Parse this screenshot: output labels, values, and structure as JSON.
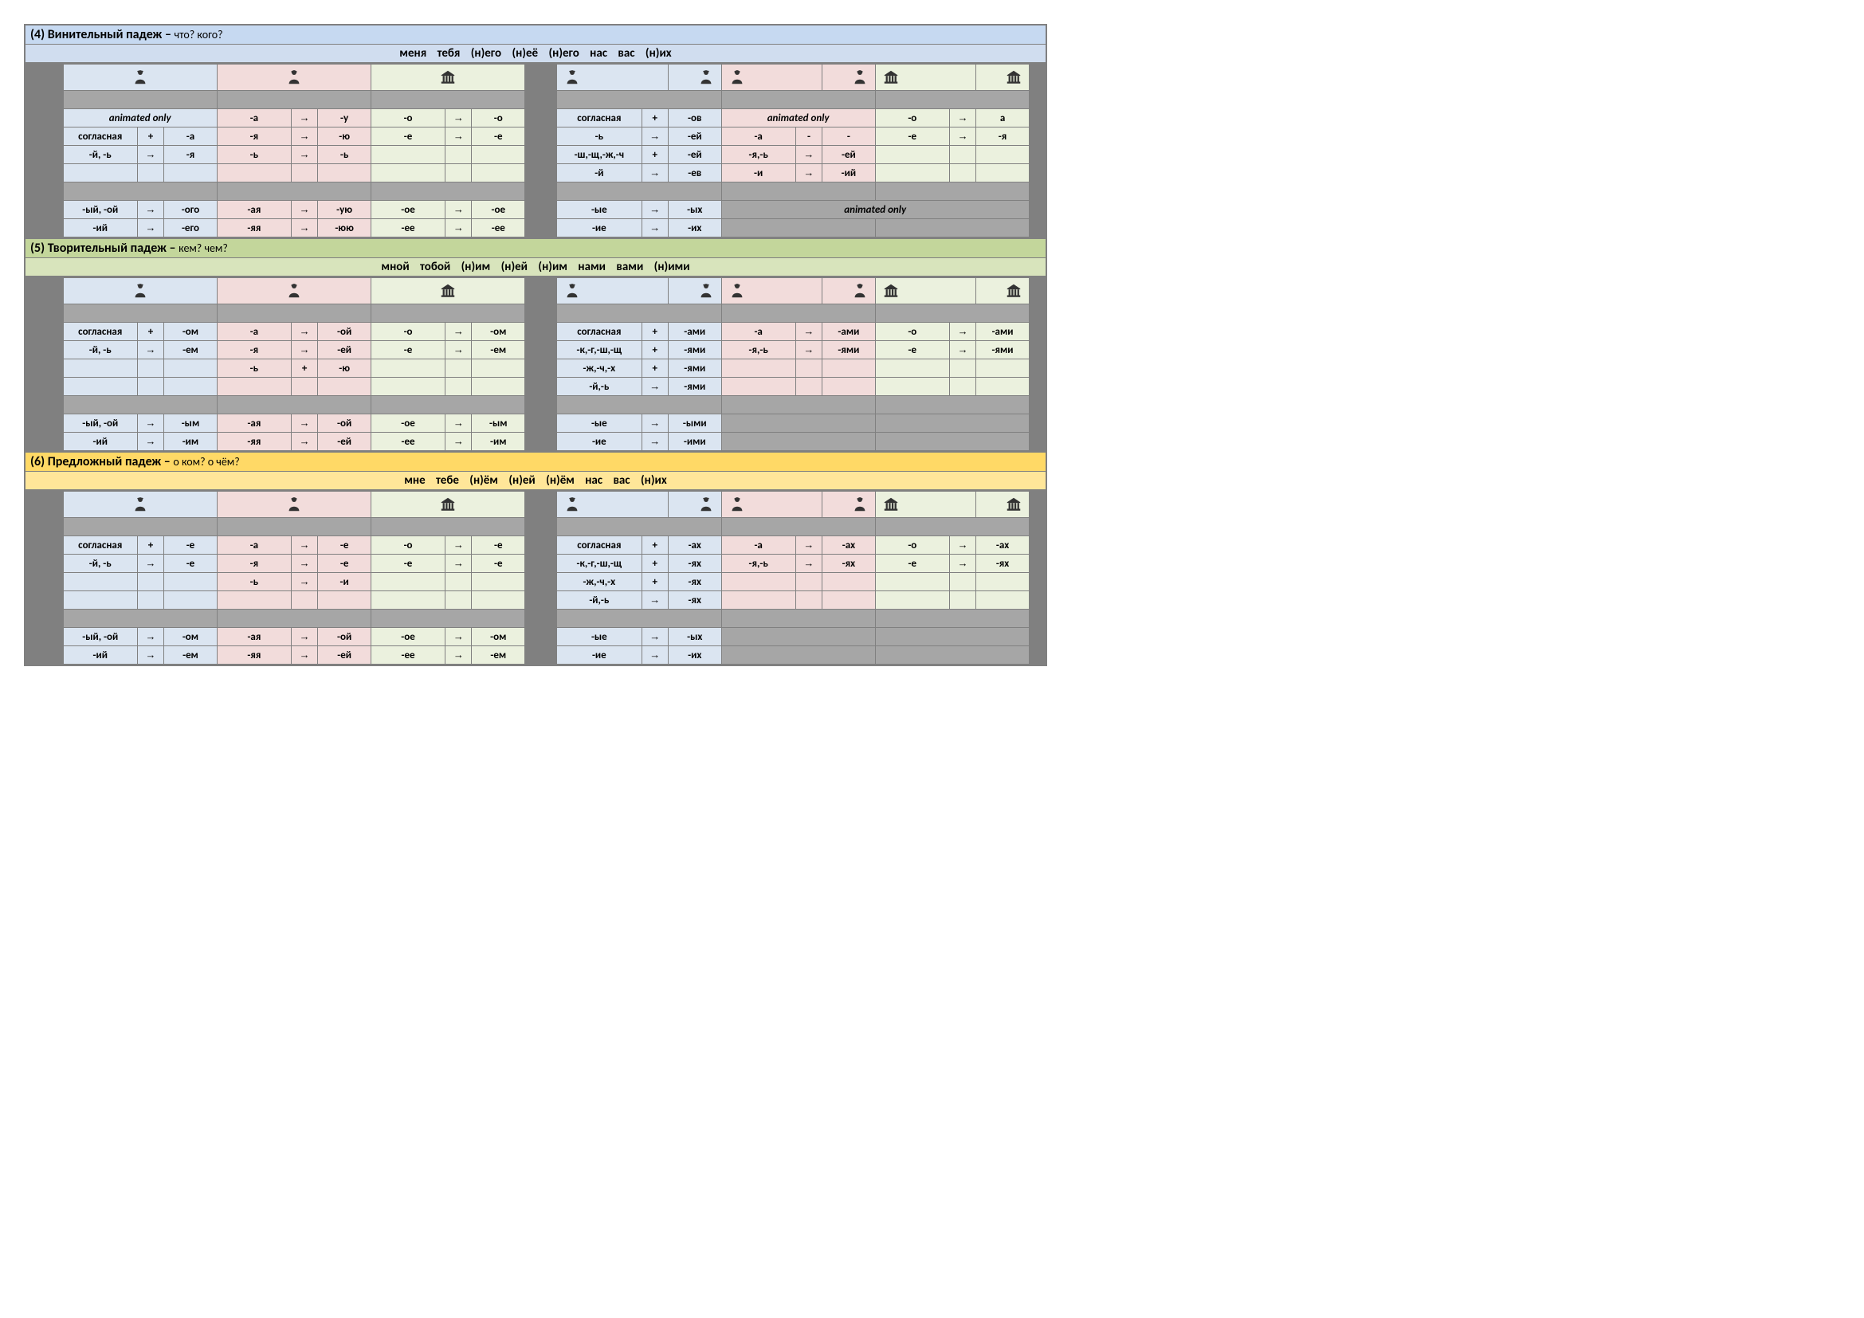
{
  "colors": {
    "gutter": "#808080",
    "blue": "#dbe5f1",
    "pink": "#f2dcdb",
    "green": "#ebf1de",
    "title_blue": "#c6d9f1",
    "title_green": "#c3d69b",
    "title_yellow": "#ffd966",
    "pron_blue": "#d0ddef",
    "pron_green": "#d8e4bc",
    "pron_yellow": "#ffe699"
  },
  "icons": {
    "male": "male-icon",
    "female": "female-icon",
    "building": "building-icon"
  },
  "glyphs": {
    "arrow": "→",
    "plus": "+",
    "minus": "-"
  },
  "cases": [
    {
      "num": "4",
      "name": "Винительный падеж",
      "q": "что? кого?",
      "title_class": "t-blue",
      "pron_class": "p-blue",
      "pronouns": "меня  тебя  (н)его  (н)её  (н)его  нас  вас  (н)их",
      "noun_rows": 4,
      "singular": {
        "m": [
          [
            "animated only",
            "C3",
            ""
          ],
          [
            "согласная",
            "+",
            "-а"
          ],
          [
            "-й, -ь",
            "→",
            "-я"
          ],
          [
            "",
            "",
            ""
          ]
        ],
        "f": [
          [
            "-а",
            "→",
            "-у"
          ],
          [
            "-я",
            "→",
            "-ю"
          ],
          [
            "-ь",
            "→",
            "-ь"
          ],
          [
            "",
            "",
            ""
          ]
        ],
        "n": [
          [
            "-о",
            "→",
            "-о"
          ],
          [
            "-е",
            "→",
            "-е"
          ],
          [
            "",
            "",
            ""
          ],
          [
            "",
            "",
            ""
          ]
        ]
      },
      "plural": {
        "m": [
          [
            "согласная",
            "+",
            "-ов"
          ],
          [
            "-ь",
            "→",
            "-ей"
          ],
          [
            "-ш,-щ,-ж,-ч",
            "+",
            "-ей"
          ],
          [
            "-й",
            "→",
            "-ев"
          ]
        ],
        "f": [
          [
            "animated only",
            "C3",
            ""
          ],
          [
            "-а",
            "-",
            "-"
          ],
          [
            "-я,-ь",
            "→",
            "-ей"
          ],
          [
            "-и",
            "→",
            "-ий"
          ]
        ],
        "n": [
          [
            "-о",
            "→",
            "а"
          ],
          [
            "-е",
            "→",
            "-я"
          ],
          [
            "",
            "",
            ""
          ],
          [
            "",
            "",
            ""
          ]
        ]
      },
      "adj_singular": {
        "m": [
          [
            "-ый, -ой",
            "→",
            "-ого"
          ],
          [
            "-ий",
            "→",
            "-его"
          ]
        ],
        "f": [
          [
            "-ая",
            "→",
            "-ую"
          ],
          [
            "-яя",
            "→",
            "-юю"
          ]
        ],
        "n": [
          [
            "-ое",
            "→",
            "-ое"
          ],
          [
            "-ее",
            "→",
            "-ее"
          ]
        ]
      },
      "adj_plural": {
        "m": [
          [
            "-ые",
            "→",
            "-ых"
          ],
          [
            "-ие",
            "→",
            "-их"
          ]
        ],
        "fn": [
          [
            "animated only",
            "C6",
            ""
          ],
          [
            "",
            "",
            ""
          ]
        ]
      }
    },
    {
      "num": "5",
      "name": "Творительный падеж",
      "q": "кем? чем?",
      "title_class": "t-green",
      "pron_class": "p-green",
      "pronouns": "мной  тобой  (н)им  (н)ей  (н)им  нами  вами  (н)ими",
      "noun_rows": 4,
      "singular": {
        "m": [
          [
            "согласная",
            "+",
            "-ом"
          ],
          [
            "-й, -ь",
            "→",
            "-ем"
          ],
          [
            "",
            "",
            ""
          ],
          [
            "",
            "",
            ""
          ]
        ],
        "f": [
          [
            "-а",
            "→",
            "-ой"
          ],
          [
            "-я",
            "→",
            "-ей"
          ],
          [
            "-ь",
            "+",
            "-ю"
          ],
          [
            "",
            "",
            ""
          ]
        ],
        "n": [
          [
            "-о",
            "→",
            "-ом"
          ],
          [
            "-е",
            "→",
            "-ем"
          ],
          [
            "",
            "",
            ""
          ],
          [
            "",
            "",
            ""
          ]
        ]
      },
      "plural": {
        "m": [
          [
            "согласная",
            "+",
            "-ами"
          ],
          [
            "-к,-г,-ш,-щ",
            "+",
            "-ями"
          ],
          [
            "-ж,-ч,-х",
            "+",
            "-ями"
          ],
          [
            "-й,-ь",
            "→",
            "-ями"
          ]
        ],
        "f": [
          [
            "-а",
            "→",
            "-ами"
          ],
          [
            "-я,-ь",
            "→",
            "-ями"
          ],
          [
            "",
            "",
            ""
          ],
          [
            "",
            "",
            ""
          ]
        ],
        "n": [
          [
            "-о",
            "→",
            "-ами"
          ],
          [
            "-е",
            "→",
            "-ями"
          ],
          [
            "",
            "",
            ""
          ],
          [
            "",
            "",
            ""
          ]
        ]
      },
      "adj_singular": {
        "m": [
          [
            "-ый, -ой",
            "→",
            "-ым"
          ],
          [
            "-ий",
            "→",
            "-им"
          ]
        ],
        "f": [
          [
            "-ая",
            "→",
            "-ой"
          ],
          [
            "-яя",
            "→",
            "-ей"
          ]
        ],
        "n": [
          [
            "-ое",
            "→",
            "-ым"
          ],
          [
            "-ее",
            "→",
            "-им"
          ]
        ]
      },
      "adj_plural": {
        "m": [
          [
            "-ые",
            "→",
            "-ыми"
          ],
          [
            "-ие",
            "→",
            "-ими"
          ]
        ],
        "fn": [
          [
            "",
            "",
            ""
          ],
          [
            "",
            "",
            ""
          ]
        ]
      }
    },
    {
      "num": "6",
      "name": "Предложный падеж",
      "q": "о ком? о чём?",
      "title_class": "t-yellow",
      "pron_class": "p-yellow",
      "pronouns": "мне  тебе  (н)ём  (н)ей  (н)ём  нас  вас  (н)их",
      "noun_rows": 4,
      "singular": {
        "m": [
          [
            "согласная",
            "+",
            "-е"
          ],
          [
            "-й, -ь",
            "→",
            "-е"
          ],
          [
            "",
            "",
            ""
          ],
          [
            "",
            "",
            ""
          ]
        ],
        "f": [
          [
            "-а",
            "→",
            "-е"
          ],
          [
            "-я",
            "→",
            "-е"
          ],
          [
            "-ь",
            "→",
            "-и"
          ],
          [
            "",
            "",
            ""
          ]
        ],
        "n": [
          [
            "-о",
            "→",
            "-е"
          ],
          [
            "-е",
            "→",
            "-е"
          ],
          [
            "",
            "",
            ""
          ],
          [
            "",
            "",
            ""
          ]
        ]
      },
      "plural": {
        "m": [
          [
            "согласная",
            "+",
            "-ах"
          ],
          [
            "-к,-г,-ш,-щ",
            "+",
            "-ях"
          ],
          [
            "-ж,-ч,-х",
            "+",
            "-ях"
          ],
          [
            "-й,-ь",
            "→",
            "-ях"
          ]
        ],
        "f": [
          [
            "-а",
            "→",
            "-ах"
          ],
          [
            "-я,-ь",
            "→",
            "-ях"
          ],
          [
            "",
            "",
            ""
          ],
          [
            "",
            "",
            ""
          ]
        ],
        "n": [
          [
            "-о",
            "→",
            "-ах"
          ],
          [
            "-е",
            "→",
            "-ях"
          ],
          [
            "",
            "",
            ""
          ],
          [
            "",
            "",
            ""
          ]
        ]
      },
      "adj_singular": {
        "m": [
          [
            "-ый, -ой",
            "→",
            "-ом"
          ],
          [
            "-ий",
            "→",
            "-ем"
          ]
        ],
        "f": [
          [
            "-ая",
            "→",
            "-ой"
          ],
          [
            "-яя",
            "→",
            "-ей"
          ]
        ],
        "n": [
          [
            "-ое",
            "→",
            "-ом"
          ],
          [
            "-ее",
            "→",
            "-ем"
          ]
        ]
      },
      "adj_plural": {
        "m": [
          [
            "-ые",
            "→",
            "-ых"
          ],
          [
            "-ие",
            "→",
            "-их"
          ]
        ],
        "fn": [
          [
            "",
            "",
            ""
          ],
          [
            "",
            "",
            ""
          ]
        ]
      }
    }
  ]
}
